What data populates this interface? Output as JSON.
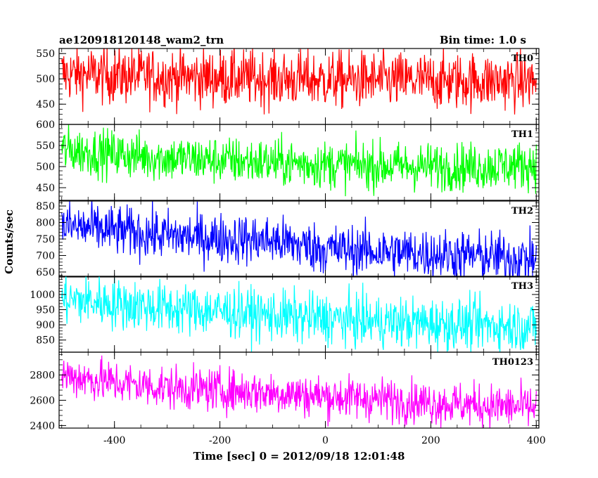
{
  "chart_data": {
    "type": "line",
    "title": "ae120918120148_wam2_trn",
    "subtitle": "Bin time: 1.0 s",
    "xlabel": "Time [sec] 0 = 2012/09/18 12:01:48",
    "ylabel": "Counts/sec",
    "xlim": [
      -505,
      405
    ],
    "xticks": [
      -400,
      -200,
      0,
      200,
      400
    ],
    "grid": false,
    "panels": [
      {
        "name": "TH0",
        "color": "#ff0000",
        "ylim": [
          410,
          560
        ],
        "yticks": [
          450,
          500,
          550
        ],
        "x": [
          -500,
          -400,
          -300,
          -200,
          -100,
          0,
          100,
          200,
          300,
          400
        ],
        "values": [
          510,
          507,
          504,
          502,
          500,
          498,
          497,
          496,
          496,
          495
        ],
        "noise": 28
      },
      {
        "name": "TH1",
        "color": "#00ff00",
        "ylim": [
          420,
          600
        ],
        "yticks": [
          450,
          500,
          550,
          600
        ],
        "x": [
          -500,
          -400,
          -300,
          -200,
          -100,
          0,
          100,
          200,
          300,
          400
        ],
        "values": [
          540,
          530,
          520,
          515,
          510,
          505,
          502,
          500,
          500,
          505
        ],
        "noise": 28
      },
      {
        "name": "TH2",
        "color": "#0000ff",
        "ylim": [
          635,
          865
        ],
        "yticks": [
          650,
          700,
          750,
          800,
          850
        ],
        "x": [
          -500,
          -400,
          -300,
          -200,
          -100,
          0,
          100,
          200,
          300,
          400
        ],
        "values": [
          790,
          775,
          760,
          752,
          745,
          720,
          712,
          705,
          698,
          690
        ],
        "noise": 38
      },
      {
        "name": "TH3",
        "color": "#00ffff",
        "ylim": [
          810,
          1060
        ],
        "yticks": [
          850,
          900,
          950,
          1000
        ],
        "x": [
          -500,
          -400,
          -300,
          -200,
          -100,
          0,
          100,
          200,
          300,
          400
        ],
        "values": [
          985,
          970,
          955,
          945,
          930,
          920,
          910,
          905,
          900,
          895
        ],
        "noise": 42
      },
      {
        "name": "TH0123",
        "color": "#ff00ff",
        "ylim": [
          2380,
          2980
        ],
        "yticks": [
          2400,
          2600,
          2800
        ],
        "x": [
          -500,
          -400,
          -300,
          -200,
          -100,
          0,
          100,
          200,
          300,
          400
        ],
        "values": [
          2800,
          2740,
          2700,
          2680,
          2660,
          2630,
          2610,
          2580,
          2560,
          2540
        ],
        "noise": 85
      }
    ]
  }
}
